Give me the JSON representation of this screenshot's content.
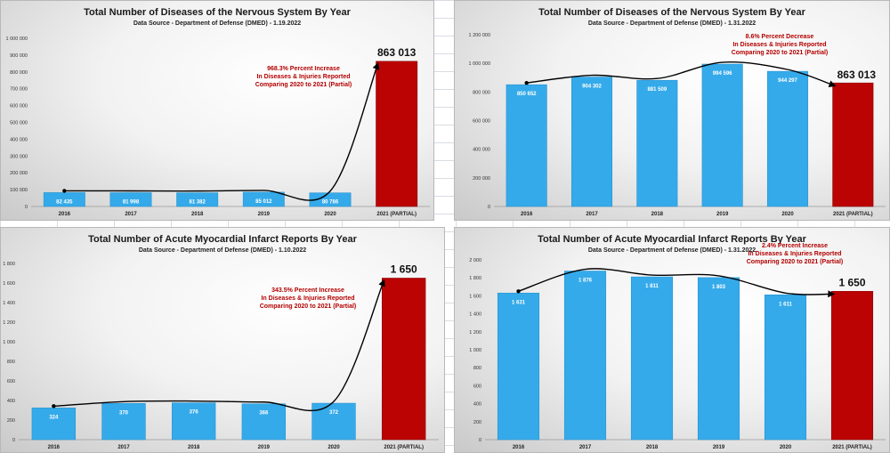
{
  "colors": {
    "bar": "#35aaea",
    "highlight": "#bb0303",
    "annotation": "#b30000",
    "trend": "#000000"
  },
  "chart_data": [
    {
      "type": "bar",
      "title": "Total Number of Diseases of the Nervous System By Year",
      "subtitle": "Data Source - Department of Defense (DMED) - 1.19.2022",
      "categories": [
        "2016",
        "2017",
        "2018",
        "2019",
        "2020",
        "2021 (PARTIAL)"
      ],
      "values": [
        82435,
        81998,
        81382,
        85012,
        80786,
        863013
      ],
      "data_labels": [
        "82 435",
        "81 998",
        "81 382",
        "85 012",
        "80 786",
        "863 013"
      ],
      "highlight_index": 5,
      "ylim": [
        0,
        1000000
      ],
      "yticks": [
        "0",
        "100 000",
        "200 000",
        "300 000",
        "400 000",
        "500 000",
        "600 000",
        "700 000",
        "800 000",
        "900 000",
        "1 000 000"
      ],
      "annotation": [
        "968.3% Percent Increase",
        "In Diseases & Injuries Reported",
        "Comparing 2020 to 2021 (Partial)"
      ],
      "grid": false,
      "legend": "none"
    },
    {
      "type": "bar",
      "title": "Total Number of Diseases of the Nervous System By Year",
      "subtitle": "Data Source - Department of Defense (DMED) - 1.31.2022",
      "categories": [
        "2016",
        "2017",
        "2018",
        "2019",
        "2020",
        "2021 (PARTIAL)"
      ],
      "values": [
        850652,
        904302,
        881509,
        994596,
        944297,
        863013
      ],
      "data_labels": [
        "850 652",
        "904 302",
        "881 509",
        "994 596",
        "944 297",
        "863 013"
      ],
      "highlight_index": 5,
      "ylim": [
        0,
        1200000
      ],
      "yticks": [
        "0",
        "200 000",
        "400 000",
        "600 000",
        "800 000",
        "1 000 000",
        "1 200 000"
      ],
      "annotation": [
        "8.6% Percent Decrease",
        "In Diseases & Injuries Reported",
        "Comparing 2020 to 2021 (Partial)"
      ],
      "grid": false,
      "legend": "none"
    },
    {
      "type": "bar",
      "title": "Total Number of Acute Myocardial Infarct Reports By Year",
      "subtitle": "Data Source - Department of Defense (DMED) - 1.10.2022",
      "categories": [
        "2016",
        "2017",
        "2018",
        "2019",
        "2020",
        "2021 (PARTIAL)"
      ],
      "values": [
        324,
        370,
        376,
        366,
        372,
        1650
      ],
      "data_labels": [
        "324",
        "370",
        "376",
        "366",
        "372",
        "1 650"
      ],
      "highlight_index": 5,
      "ylim": [
        0,
        1800
      ],
      "yticks": [
        "0",
        "200",
        "400",
        "600",
        "800",
        "1 000",
        "1 200",
        "1 400",
        "1 600",
        "1 800"
      ],
      "annotation": [
        "343.5% Percent Increase",
        "In Diseases & Injuries Reported",
        "Comparing 2020 to 2021 (Partial)"
      ],
      "grid": false,
      "legend": "none"
    },
    {
      "type": "bar",
      "title": "Total Number of Acute Myocardial Infarct Reports By Year",
      "subtitle": "Data Source - Department of Defense (DMED) - 1.31.2022",
      "categories": [
        "2016",
        "2017",
        "2018",
        "2019",
        "2020",
        "2021 (PARTIAL)"
      ],
      "values": [
        1631,
        1876,
        1811,
        1803,
        1611,
        1650
      ],
      "data_labels": [
        "1 631",
        "1 876",
        "1 811",
        "1 803",
        "1 611",
        "1 650"
      ],
      "highlight_index": 5,
      "ylim": [
        0,
        2000
      ],
      "yticks": [
        "0",
        "200",
        "400",
        "600",
        "800",
        "1 000",
        "1 200",
        "1 400",
        "1 600",
        "1 800",
        "2 000"
      ],
      "annotation": [
        "2.4% Percent Increase",
        "In Diseases & Injuries Reported",
        "Comparing 2020 to 2021 (Partial)"
      ],
      "grid": false,
      "legend": "none"
    }
  ]
}
